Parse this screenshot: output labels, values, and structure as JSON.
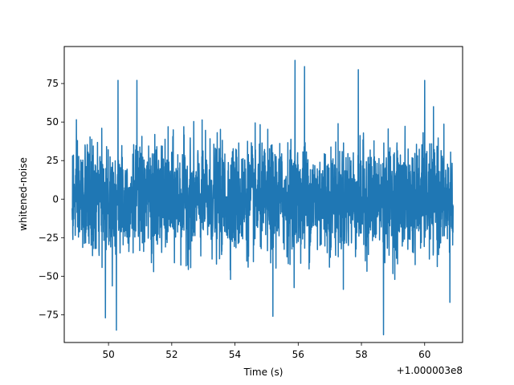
{
  "chart_data": {
    "type": "line",
    "title": "",
    "xlabel": "Time (s)",
    "ylabel": "whitened-noise",
    "x_offset_label": "+1.000003e8",
    "xlim": [
      48.6,
      61.2
    ],
    "ylim": [
      -93,
      99
    ],
    "x_ticks": [
      50,
      52,
      54,
      56,
      58,
      60
    ],
    "x_tick_labels": [
      "50",
      "52",
      "54",
      "56",
      "58",
      "60"
    ],
    "y_ticks": [
      -75,
      -50,
      -25,
      0,
      25,
      50,
      75
    ],
    "y_tick_labels": [
      "−75",
      "−50",
      "−25",
      "0",
      "25",
      "50",
      "75"
    ],
    "grid": false,
    "legend": "none",
    "series": [
      {
        "color": "#1f77b4",
        "x_range": [
          48.85,
          60.9
        ],
        "typical_envelope": [
          -45,
          45
        ],
        "peaks": [
          {
            "x": 50.3,
            "y": 77
          },
          {
            "x": 50.9,
            "y": 77
          },
          {
            "x": 55.9,
            "y": 90
          },
          {
            "x": 56.2,
            "y": 86
          },
          {
            "x": 57.9,
            "y": 84
          },
          {
            "x": 60.0,
            "y": 77
          },
          {
            "x": 50.25,
            "y": -85
          },
          {
            "x": 49.9,
            "y": -77
          },
          {
            "x": 58.7,
            "y": -88
          },
          {
            "x": 55.2,
            "y": -76
          },
          {
            "x": 60.8,
            "y": -67
          }
        ]
      }
    ]
  }
}
